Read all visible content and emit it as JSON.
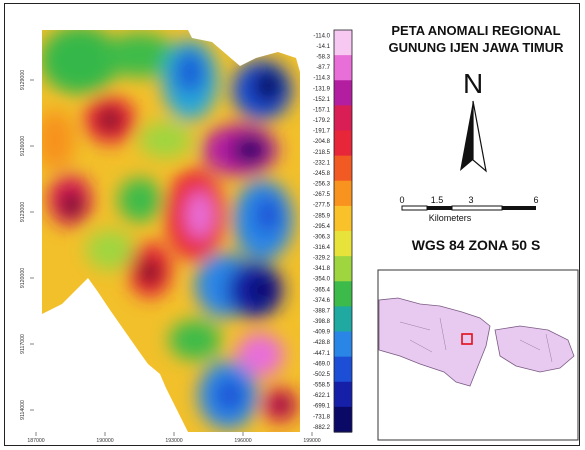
{
  "title": {
    "line1": "PETA ANOMALI REGIONAL",
    "line2": "GUNUNG IJEN JAWA TIMUR"
  },
  "north_arrow": {
    "letter": "N",
    "icon": "north-arrow-icon"
  },
  "scale_bar": {
    "ticks": [
      "0",
      "1.5",
      "3",
      "6"
    ],
    "tick_values": [
      0,
      1.5,
      3,
      6
    ],
    "unit": "Kilometers"
  },
  "datum": "WGS 84 ZONA 50 S",
  "legend": {
    "values": [
      "-114.0",
      "-14.1",
      "-58.3",
      "-87.7",
      "-114.3",
      "-131.9",
      "-152.1",
      "-157.1",
      "-179.2",
      "-191.7",
      "-204.8",
      "-218.5",
      "-232.1",
      "-245.8",
      "-256.3",
      "-267.5",
      "-277.5",
      "-285.9",
      "-295.4",
      "-306.3",
      "-316.4",
      "-329.2",
      "-341.8",
      "-354.0",
      "-365.4",
      "-374.6",
      "-388.7",
      "-398.8",
      "-409.9",
      "-428.8",
      "-447.1",
      "-469.0",
      "-502.5",
      "-558.5",
      "-622.1",
      "-699.1",
      "-731.8",
      "-882.2"
    ],
    "colors_top_to_bottom": [
      "#f6c8f2",
      "#e86ed8",
      "#b31ea0",
      "#d81e54",
      "#e8263a",
      "#f25a24",
      "#f7931e",
      "#f9c22a",
      "#e8e33a",
      "#9fd640",
      "#3dbb4a",
      "#1fa9a0",
      "#2a86e6",
      "#1d4ed6",
      "#151fa8",
      "#0a0a66"
    ]
  },
  "axes": {
    "x_ticks": [
      "187000",
      "190000",
      "193000",
      "196000",
      "199000"
    ],
    "y_ticks": [
      "9114000",
      "9117000",
      "9120000",
      "9123000",
      "9126000",
      "9129000"
    ]
  },
  "inset": {
    "description_icon": "locator-map-icon",
    "highlight_color": "#e0101a",
    "land_color": "#e8c9ef"
  }
}
